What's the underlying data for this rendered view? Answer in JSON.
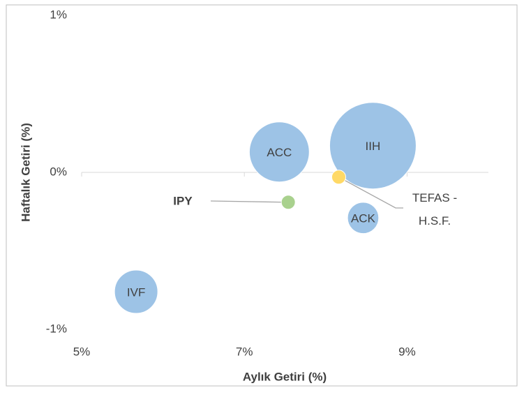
{
  "chart_data": {
    "type": "bubble",
    "x_label": "Aylık Getiri (%)",
    "y_label": "Haftalık Getiri (%)",
    "xlim": [
      5,
      10
    ],
    "xticks": [
      {
        "value": 5,
        "label": "5%"
      },
      {
        "value": 7,
        "label": "7%"
      },
      {
        "value": 9,
        "label": "9%"
      }
    ],
    "ylim": [
      -1,
      1
    ],
    "yticks": [
      {
        "value": -1,
        "label": "-1%"
      },
      {
        "value": 0,
        "label": "0%"
      },
      {
        "value": 1,
        "label": "1%"
      }
    ],
    "points": [
      {
        "name": "ACC",
        "x": 7.43,
        "y": 0.13,
        "size": 48,
        "color": "#9dc3e6"
      },
      {
        "name": "IIH",
        "x": 8.58,
        "y": 0.17,
        "size": 100,
        "color": "#9dc3e6"
      },
      {
        "name": "TEFAS - H.S.F.",
        "x": 8.16,
        "y": -0.03,
        "size": 2.6,
        "color": "#ffd966"
      },
      {
        "name": "IPY",
        "x": 7.54,
        "y": -0.19,
        "size": 2.6,
        "color": "#a9d18e"
      },
      {
        "name": "ACK",
        "x": 8.46,
        "y": -0.29,
        "size": 13,
        "color": "#9dc3e6"
      },
      {
        "name": "IVF",
        "x": 5.67,
        "y": -0.76,
        "size": 25,
        "color": "#9dc3e6"
      }
    ]
  }
}
